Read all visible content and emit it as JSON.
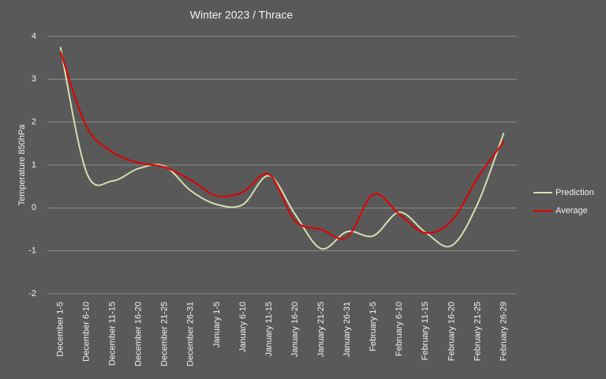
{
  "chart_data": {
    "type": "line",
    "title": "Winter 2023 /  Thrace",
    "y_label": "Temperature  850hPa",
    "categories": [
      "December 1-5",
      "December 6-10",
      "December 11-15",
      "December 16-20",
      "December 21-25",
      "December 26-31",
      "January 1-5",
      "January 6-10",
      "January 11-15",
      "January 16-20",
      "January 21-25",
      "January 26-31",
      "February 1-5",
      "February 6-10",
      "February 11-15",
      "February 16-20",
      "February 21-25",
      "February 26-29"
    ],
    "series": [
      {
        "name": "Prediction",
        "color": "#d4deb0",
        "values": [
          3.75,
          0.83,
          0.63,
          0.92,
          0.97,
          0.4,
          0.08,
          0.08,
          0.75,
          -0.15,
          -0.95,
          -0.55,
          -0.65,
          -0.1,
          -0.57,
          -0.88,
          0.1,
          1.75
        ]
      },
      {
        "name": "Average",
        "color": "#e00000",
        "values": [
          3.65,
          1.9,
          1.3,
          1.05,
          0.95,
          0.65,
          0.28,
          0.37,
          0.78,
          -0.3,
          -0.5,
          -0.68,
          0.32,
          -0.15,
          -0.58,
          -0.3,
          0.7,
          1.55
        ]
      }
    ],
    "ylim": [
      -2,
      4
    ],
    "yticks": [
      -2,
      -1,
      0,
      1,
      2,
      3,
      4
    ],
    "grid": true,
    "legend": "right"
  }
}
